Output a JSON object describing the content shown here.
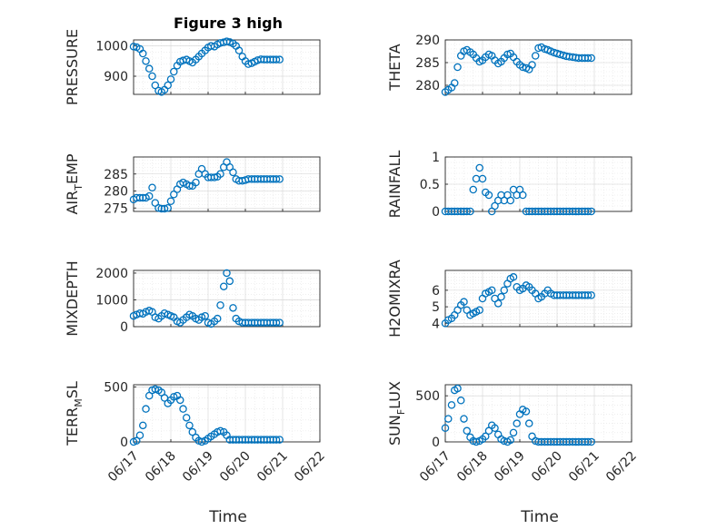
{
  "chart_data": {
    "title": "Figure 3 high",
    "xlabel": "Time",
    "x_ticks": [
      "06/17",
      "06/18",
      "06/19",
      "06/20",
      "06/21",
      "06/22"
    ],
    "x_range": [
      "06/17",
      "06/22"
    ],
    "grid": true,
    "marker": "open-circle",
    "color": "#0072BD",
    "panels": [
      {
        "id": "pressure",
        "type": "scatter",
        "ylabel": "PRESSURE",
        "ylim": [
          840,
          1020
        ],
        "yticks": [
          900,
          1000
        ],
        "x": [
          17.0,
          17.08,
          17.17,
          17.25,
          17.33,
          17.42,
          17.5,
          17.58,
          17.67,
          17.75,
          17.83,
          17.92,
          18.0,
          18.08,
          18.17,
          18.25,
          18.33,
          18.42,
          18.5,
          18.58,
          18.67,
          18.75,
          18.83,
          18.92,
          19.0,
          19.08,
          19.17,
          19.25,
          19.33,
          19.42,
          19.5,
          19.58,
          19.67,
          19.75,
          19.83,
          19.92,
          20.0,
          20.08,
          20.17,
          20.25,
          20.33,
          20.42,
          20.5,
          20.58,
          20.67,
          20.75,
          20.83,
          20.92
        ],
        "y": [
          998,
          996,
          990,
          975,
          950,
          925,
          900,
          870,
          852,
          848,
          855,
          870,
          890,
          915,
          935,
          948,
          952,
          955,
          950,
          945,
          955,
          965,
          975,
          985,
          995,
          1000,
          998,
          1005,
          1010,
          1012,
          1015,
          1013,
          1008,
          1000,
          985,
          965,
          950,
          940,
          943,
          948,
          953,
          956,
          955,
          955,
          955,
          955,
          955,
          955
        ]
      },
      {
        "id": "theta",
        "type": "scatter",
        "ylabel": "THETA",
        "ylim": [
          278,
          290
        ],
        "yticks": [
          280,
          285,
          290
        ],
        "x": [
          17.0,
          17.08,
          17.17,
          17.25,
          17.33,
          17.42,
          17.5,
          17.58,
          17.67,
          17.75,
          17.83,
          17.92,
          18.0,
          18.08,
          18.17,
          18.25,
          18.33,
          18.42,
          18.5,
          18.58,
          18.67,
          18.75,
          18.83,
          18.92,
          19.0,
          19.08,
          19.17,
          19.25,
          19.33,
          19.42,
          19.5,
          19.58,
          19.67,
          19.75,
          19.83,
          19.92,
          20.0,
          20.08,
          20.17,
          20.25,
          20.33,
          20.42,
          20.5,
          20.58,
          20.67,
          20.75,
          20.83,
          20.92
        ],
        "y": [
          278.5,
          279,
          279.5,
          280.5,
          284,
          286.5,
          287.5,
          287.8,
          287.3,
          286.8,
          286,
          285.2,
          285.5,
          286.2,
          286.8,
          286.5,
          285.5,
          284.8,
          285.2,
          286,
          286.8,
          287,
          286.2,
          285.2,
          284.5,
          284,
          283.8,
          283.5,
          284.5,
          286.5,
          288.2,
          288.4,
          288,
          287.8,
          287.5,
          287.2,
          287,
          286.8,
          286.6,
          286.4,
          286.3,
          286.2,
          286.1,
          286.0,
          286.0,
          286.0,
          286.0,
          286.0
        ]
      },
      {
        "id": "air_temp",
        "type": "scatter",
        "ylabel": "AIR_TEMP",
        "ylim": [
          274,
          290
        ],
        "yticks": [
          275,
          280,
          285
        ],
        "x": [
          17.0,
          17.08,
          17.17,
          17.25,
          17.33,
          17.42,
          17.5,
          17.58,
          17.67,
          17.75,
          17.83,
          17.92,
          18.0,
          18.08,
          18.17,
          18.25,
          18.33,
          18.42,
          18.5,
          18.58,
          18.67,
          18.75,
          18.83,
          18.92,
          19.0,
          19.08,
          19.17,
          19.25,
          19.33,
          19.42,
          19.5,
          19.58,
          19.67,
          19.75,
          19.83,
          19.92,
          20.0,
          20.08,
          20.17,
          20.25,
          20.33,
          20.42,
          20.5,
          20.58,
          20.67,
          20.75,
          20.83,
          20.92
        ],
        "y": [
          277.5,
          278,
          278,
          278,
          278,
          278.5,
          281,
          276.5,
          275,
          274.8,
          274.8,
          275,
          277,
          279,
          280.5,
          282,
          282.5,
          282,
          281.5,
          281.5,
          282.5,
          285,
          286.5,
          285,
          284,
          284,
          284,
          284.2,
          285,
          287,
          288.5,
          287,
          285.5,
          283.5,
          283,
          283,
          283.2,
          283.5,
          283.5,
          283.5,
          283.5,
          283.5,
          283.5,
          283.5,
          283.5,
          283.5,
          283.5,
          283.5
        ]
      },
      {
        "id": "rainfall",
        "type": "scatter",
        "ylabel": "RAINFALL",
        "ylim": [
          0,
          1
        ],
        "yticks": [
          0,
          0.5,
          1
        ],
        "x": [
          17.0,
          17.08,
          17.17,
          17.25,
          17.33,
          17.42,
          17.5,
          17.58,
          17.67,
          17.75,
          17.83,
          17.92,
          18.0,
          18.08,
          18.17,
          18.25,
          18.33,
          18.42,
          18.5,
          18.58,
          18.67,
          18.75,
          18.83,
          18.92,
          19.0,
          19.08,
          19.17,
          19.25,
          19.33,
          19.42,
          19.5,
          19.58,
          19.67,
          19.75,
          19.83,
          19.92,
          20.0,
          20.08,
          20.17,
          20.25,
          20.33,
          20.42,
          20.5,
          20.58,
          20.67,
          20.75,
          20.83,
          20.92
        ],
        "y": [
          0,
          0,
          0,
          0,
          0,
          0,
          0,
          0,
          0,
          0.4,
          0.6,
          0.8,
          0.6,
          0.35,
          0.3,
          0,
          0.1,
          0.2,
          0.3,
          0.2,
          0.3,
          0.2,
          0.4,
          0.3,
          0.4,
          0.3,
          0,
          0,
          0,
          0,
          0,
          0,
          0,
          0,
          0,
          0,
          0,
          0,
          0,
          0,
          0,
          0,
          0,
          0,
          0,
          0,
          0,
          0
        ]
      },
      {
        "id": "mixdepth",
        "type": "scatter",
        "ylabel": "MIXDEPTH",
        "ylim": [
          0,
          2100
        ],
        "yticks": [
          0,
          1000,
          2000
        ],
        "x": [
          17.0,
          17.08,
          17.17,
          17.25,
          17.33,
          17.42,
          17.5,
          17.58,
          17.67,
          17.75,
          17.83,
          17.92,
          18.0,
          18.08,
          18.17,
          18.25,
          18.33,
          18.42,
          18.5,
          18.58,
          18.67,
          18.75,
          18.83,
          18.92,
          19.0,
          19.08,
          19.17,
          19.25,
          19.33,
          19.42,
          19.5,
          19.58,
          19.67,
          19.75,
          19.83,
          19.92,
          20.0,
          20.08,
          20.17,
          20.25,
          20.33,
          20.42,
          20.5,
          20.58,
          20.67,
          20.75,
          20.83,
          20.92
        ],
        "y": [
          400,
          450,
          500,
          480,
          550,
          600,
          550,
          350,
          300,
          400,
          500,
          450,
          400,
          350,
          200,
          150,
          250,
          350,
          450,
          400,
          300,
          250,
          350,
          400,
          150,
          100,
          200,
          300,
          800,
          1500,
          2000,
          1700,
          700,
          300,
          200,
          150,
          150,
          150,
          150,
          150,
          150,
          150,
          150,
          150,
          150,
          150,
          150,
          150
        ]
      },
      {
        "id": "h2omixra",
        "type": "scatter",
        "ylabel": "H2OMIXRA",
        "ylim": [
          3.8,
          7.2
        ],
        "yticks": [
          4,
          5,
          6
        ],
        "x": [
          17.0,
          17.08,
          17.17,
          17.25,
          17.33,
          17.42,
          17.5,
          17.58,
          17.67,
          17.75,
          17.83,
          17.92,
          18.0,
          18.08,
          18.17,
          18.25,
          18.33,
          18.42,
          18.5,
          18.58,
          18.67,
          18.75,
          18.83,
          18.92,
          19.0,
          19.08,
          19.17,
          19.25,
          19.33,
          19.42,
          19.5,
          19.58,
          19.67,
          19.75,
          19.83,
          19.92,
          20.0,
          20.08,
          20.17,
          20.25,
          20.33,
          20.42,
          20.5,
          20.58,
          20.67,
          20.75,
          20.83,
          20.92
        ],
        "y": [
          4.0,
          4.2,
          4.3,
          4.5,
          4.8,
          5.1,
          5.3,
          4.8,
          4.5,
          4.6,
          4.7,
          4.8,
          5.5,
          5.8,
          5.9,
          6.0,
          5.5,
          5.2,
          5.6,
          6.0,
          6.4,
          6.7,
          6.8,
          6.2,
          6.0,
          6.1,
          6.3,
          6.2,
          6.0,
          5.8,
          5.5,
          5.6,
          5.8,
          6.0,
          5.8,
          5.7,
          5.7,
          5.7,
          5.7,
          5.7,
          5.7,
          5.7,
          5.7,
          5.7,
          5.7,
          5.7,
          5.7,
          5.7
        ]
      },
      {
        "id": "terr_msl",
        "type": "scatter",
        "ylabel": "TERR_MSL",
        "ylim": [
          0,
          520
        ],
        "yticks": [
          0,
          500
        ],
        "x": [
          17.0,
          17.08,
          17.17,
          17.25,
          17.33,
          17.42,
          17.5,
          17.58,
          17.67,
          17.75,
          17.83,
          17.92,
          18.0,
          18.08,
          18.17,
          18.25,
          18.33,
          18.42,
          18.5,
          18.58,
          18.67,
          18.75,
          18.83,
          18.92,
          19.0,
          19.08,
          19.17,
          19.25,
          19.33,
          19.42,
          19.5,
          19.58,
          19.67,
          19.75,
          19.83,
          19.92,
          20.0,
          20.08,
          20.17,
          20.25,
          20.33,
          20.42,
          20.5,
          20.58,
          20.67,
          20.75,
          20.83,
          20.92
        ],
        "y": [
          0,
          10,
          60,
          150,
          300,
          420,
          470,
          480,
          470,
          450,
          400,
          350,
          380,
          410,
          420,
          380,
          300,
          220,
          150,
          90,
          40,
          10,
          0,
          10,
          30,
          50,
          70,
          90,
          100,
          90,
          60,
          20,
          20,
          20,
          20,
          20,
          20,
          20,
          20,
          20,
          20,
          20,
          20,
          20,
          20,
          20,
          20,
          20
        ]
      },
      {
        "id": "sun_flux",
        "type": "scatter",
        "ylabel": "SUN_FLUX",
        "ylim": [
          0,
          620
        ],
        "yticks": [
          0,
          500
        ],
        "x": [
          17.0,
          17.08,
          17.17,
          17.25,
          17.33,
          17.42,
          17.5,
          17.58,
          17.67,
          17.75,
          17.83,
          17.92,
          18.0,
          18.08,
          18.17,
          18.25,
          18.33,
          18.42,
          18.5,
          18.58,
          18.67,
          18.75,
          18.83,
          18.92,
          19.0,
          19.08,
          19.17,
          19.25,
          19.33,
          19.42,
          19.5,
          19.58,
          19.67,
          19.75,
          19.83,
          19.92,
          20.0,
          20.08,
          20.17,
          20.25,
          20.33,
          20.42,
          20.5,
          20.58,
          20.67,
          20.75,
          20.83,
          20.92
        ],
        "y": [
          150,
          250,
          400,
          560,
          580,
          450,
          250,
          120,
          50,
          10,
          0,
          10,
          30,
          60,
          120,
          180,
          150,
          80,
          30,
          10,
          0,
          20,
          100,
          200,
          300,
          350,
          330,
          200,
          60,
          10,
          0,
          0,
          0,
          0,
          0,
          0,
          0,
          0,
          0,
          0,
          0,
          0,
          0,
          0,
          0,
          0,
          0,
          0
        ]
      }
    ]
  }
}
